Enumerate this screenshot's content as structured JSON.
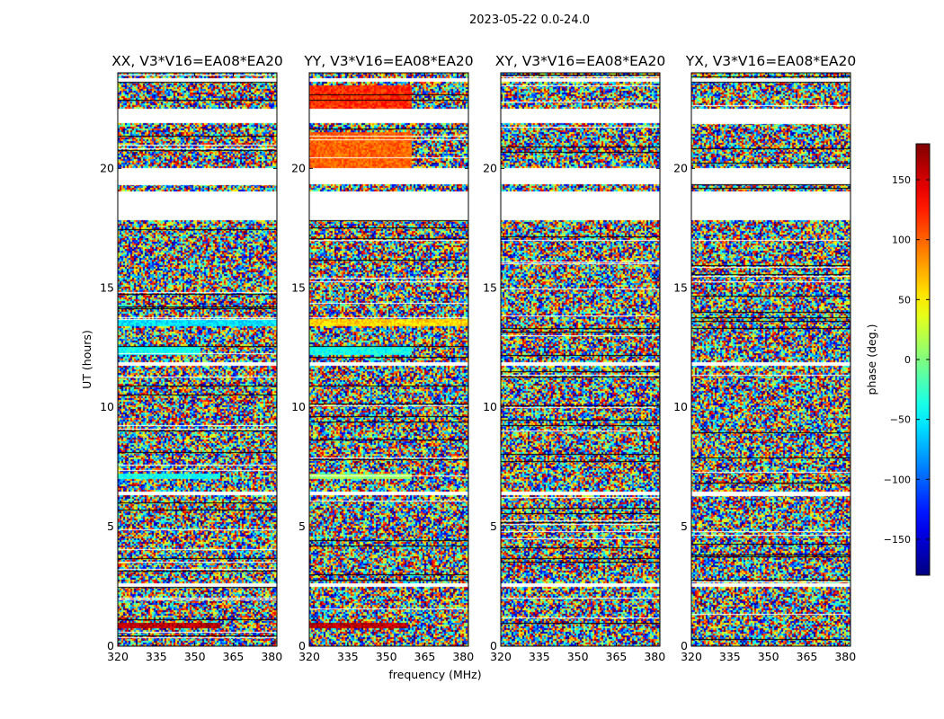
{
  "title": "2023-05-22 0.0-24.0",
  "ylabel": "UT (hours)",
  "xlabel": "frequency (MHz)",
  "colorbar": {
    "label": "phase (deg.)",
    "range": [
      -180,
      180
    ],
    "ticks": [
      150,
      100,
      50,
      0,
      -50,
      -100,
      -150
    ],
    "tick_labels": [
      "150",
      "100",
      "50",
      "0",
      "−50",
      "−100",
      "−150"
    ],
    "colormap": "jet"
  },
  "chart_data": [
    {
      "type": "heatmap",
      "title": "XX, V3*V16=EA08*EA20",
      "xlim": [
        320,
        382
      ],
      "ylim": [
        0,
        24
      ],
      "x_ticks": [
        320,
        335,
        350,
        365,
        380
      ],
      "y_ticks": [
        0,
        5,
        10,
        15,
        20
      ],
      "value_range": [
        -180,
        180
      ],
      "coherent_regions": [
        {
          "t": [
            0.75,
            0.95
          ],
          "f": [
            320,
            360
          ],
          "phase": 160
        },
        {
          "t": [
            12.2,
            12.6
          ],
          "f": [
            320,
            352
          ],
          "phase": -40
        },
        {
          "t": [
            13.4,
            13.7
          ],
          "f": [
            320,
            382
          ],
          "phase": -55
        },
        {
          "t": [
            7.0,
            7.2
          ],
          "f": [
            320,
            360
          ],
          "phase": -40
        }
      ]
    },
    {
      "type": "heatmap",
      "title": "YY, V3*V16=EA08*EA20",
      "xlim": [
        320,
        382
      ],
      "ylim": [
        0,
        24
      ],
      "x_ticks": [
        320,
        335,
        350,
        365,
        380
      ],
      "y_ticks": [
        0,
        5,
        10,
        15,
        20
      ],
      "value_range": [
        -180,
        180
      ],
      "coherent_regions": [
        {
          "t": [
            0.75,
            0.95
          ],
          "f": [
            320,
            358
          ],
          "phase": 160
        },
        {
          "t": [
            22.0,
            23.5
          ],
          "f": [
            320,
            360
          ],
          "phase": 120
        },
        {
          "t": [
            20.0,
            21.5
          ],
          "f": [
            320,
            360
          ],
          "phase": 100
        },
        {
          "t": [
            12.2,
            12.6
          ],
          "f": [
            320,
            360
          ],
          "phase": -40
        },
        {
          "t": [
            13.4,
            13.7
          ],
          "f": [
            320,
            382
          ],
          "phase": 60
        },
        {
          "t": [
            7.0,
            7.2
          ],
          "f": [
            320,
            360
          ],
          "phase": 10
        }
      ]
    },
    {
      "type": "heatmap",
      "title": "XY, V3*V16=EA08*EA20",
      "xlim": [
        320,
        382
      ],
      "ylim": [
        0,
        24
      ],
      "x_ticks": [
        320,
        335,
        350,
        365,
        380
      ],
      "y_ticks": [
        0,
        5,
        10,
        15,
        20
      ],
      "value_range": [
        -180,
        180
      ],
      "coherent_regions": []
    },
    {
      "type": "heatmap",
      "title": "YX, V3*V16=EA08*EA20",
      "xlim": [
        320,
        382
      ],
      "ylim": [
        0,
        24
      ],
      "x_ticks": [
        320,
        335,
        350,
        365,
        380
      ],
      "y_ticks": [
        0,
        5,
        10,
        15,
        20
      ],
      "value_range": [
        -180,
        180
      ],
      "coherent_regions": []
    }
  ],
  "flagged_ut_ranges": [
    [
      2.45,
      2.6
    ],
    [
      6.3,
      6.45
    ],
    [
      6.0,
      6.1
    ],
    [
      11.7,
      11.85
    ],
    [
      17.5,
      17.6
    ],
    [
      17.8,
      19.0
    ],
    [
      19.35,
      20.0
    ],
    [
      20.2,
      20.3
    ],
    [
      21.45,
      21.6
    ],
    [
      21.75,
      22.5
    ],
    [
      23.6,
      23.8
    ],
    [
      23.2,
      23.35
    ],
    [
      16.4,
      16.55
    ],
    [
      17.0,
      17.1
    ]
  ],
  "blank_ut_ranges": [
    [
      2.45,
      2.6
    ],
    [
      11.7,
      11.85
    ],
    [
      17.8,
      19.0
    ],
    [
      19.35,
      20.0
    ],
    [
      21.9,
      22.5
    ],
    [
      23.6,
      23.8
    ],
    [
      6.3,
      6.45
    ]
  ]
}
